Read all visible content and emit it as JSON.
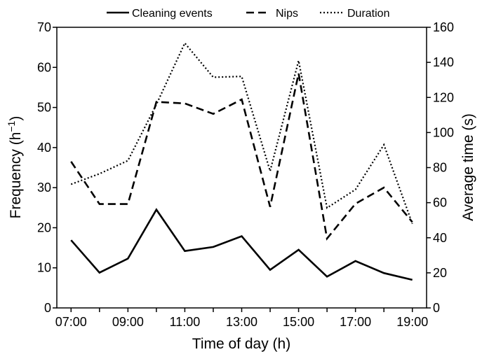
{
  "chart_data": {
    "type": "line",
    "title": "",
    "xlabel": "Time of day (h)",
    "ylabel_left": "Frequency (h",
    "ylabel_left_sup": "−1",
    "ylabel_left_end": ")",
    "ylabel_right": "Average time (s)",
    "x": [
      "07:00",
      "08:00",
      "09:00",
      "10:00",
      "11:00",
      "12:00",
      "13:00",
      "14:00",
      "15:00",
      "16:00",
      "17:00",
      "18:00",
      "19:00"
    ],
    "x_tick_labels": [
      "07:00",
      "09:00",
      "11:00",
      "13:00",
      "15:00",
      "17:00",
      "19:00"
    ],
    "x_plot_values": [
      7,
      8,
      9,
      10,
      11,
      12,
      13,
      14,
      15,
      16,
      17,
      18,
      19
    ],
    "ylim_left": [
      0,
      70
    ],
    "yticks_left": [
      "0",
      "10",
      "20",
      "30",
      "40",
      "50",
      "60",
      "70"
    ],
    "ylim_right": [
      0,
      160
    ],
    "yticks_right": [
      "0",
      "20",
      "40",
      "60",
      "80",
      "100",
      "120",
      "140",
      "160"
    ],
    "grid": false,
    "legend_position": "top",
    "series": [
      {
        "name": "Cleaning events",
        "axis": "left",
        "style": "solid",
        "values": [
          16.9,
          8.8,
          12.3,
          24.5,
          14.2,
          15.2,
          17.9,
          9.5,
          14.5,
          7.8,
          11.7,
          8.7,
          7.0
        ]
      },
      {
        "name": "Nips",
        "axis": "left",
        "style": "dashed",
        "values": [
          36.5,
          25.9,
          25.9,
          51.4,
          51.0,
          48.4,
          52.0,
          25.2,
          58.5,
          17.3,
          26.0,
          30.0,
          21.4
        ]
      },
      {
        "name": "Duration",
        "axis": "right",
        "style": "dotted",
        "values": [
          70.5,
          76.5,
          84.0,
          116.0,
          151.0,
          131.5,
          132.0,
          78.0,
          141.0,
          57.0,
          67.5,
          93.0,
          48.0
        ]
      }
    ]
  }
}
